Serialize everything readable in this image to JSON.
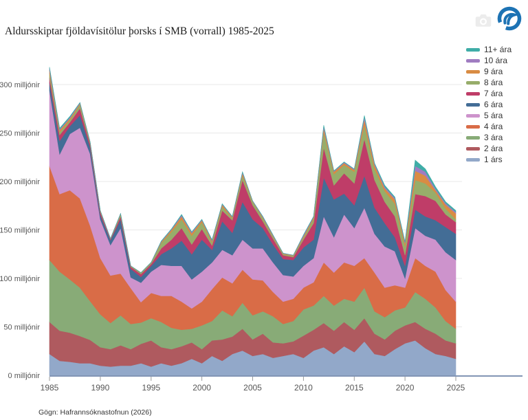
{
  "header": {
    "title_ref": "see chart_data.title"
  },
  "icons": {
    "toolbar_icon": "camera-icon",
    "brand_icon": "hafro-wave-logo"
  },
  "branding": {
    "logo_color": "#1d73b4"
  },
  "source": {
    "text": "Gögn: Hafrannsóknastofnun (2026)"
  },
  "chart_data": {
    "type": "area",
    "stacked": true,
    "title": "Aldursskiptar fjöldavísitölur þorsks í SMB (vorrall) 1985-2025",
    "xlabel": "",
    "ylabel": "",
    "y_tick_suffix": " milljónir",
    "y_ticks": [
      0,
      50,
      100,
      150,
      200,
      250,
      300
    ],
    "ylim": [
      0,
      320
    ],
    "x_tick_years": [
      1985,
      1990,
      1995,
      2000,
      2005,
      2010,
      2015,
      2020,
      2025
    ],
    "grid": true,
    "legend_position": "top-right",
    "style": {
      "grid_color": "#e8e8e8",
      "axis_line_color": "#8295b5",
      "tick_color": "#999999",
      "tick_label_color": "#555555"
    },
    "x": [
      1985,
      1986,
      1987,
      1988,
      1989,
      1990,
      1991,
      1992,
      1993,
      1994,
      1995,
      1996,
      1997,
      1998,
      1999,
      2000,
      2001,
      2002,
      2003,
      2004,
      2005,
      2006,
      2007,
      2008,
      2009,
      2010,
      2011,
      2012,
      2013,
      2014,
      2015,
      2016,
      2017,
      2018,
      2019,
      2020,
      2021,
      2022,
      2023,
      2024,
      2025
    ],
    "series": [
      {
        "name": "1 árs",
        "color": "#92a8c9",
        "values": [
          22,
          15,
          14,
          12.5,
          12.5,
          10,
          9,
          10,
          10,
          12.5,
          9,
          12.5,
          10,
          12.5,
          17,
          12.5,
          20,
          15,
          22,
          25.5,
          20,
          22,
          18,
          20,
          22,
          18,
          25.5,
          29,
          22,
          30,
          24,
          35,
          22,
          20,
          27,
          33,
          36,
          28,
          22,
          20,
          17
        ]
      },
      {
        "name": "2 ára",
        "color": "#af5a5f",
        "values": [
          33,
          31,
          30,
          28,
          24,
          19,
          18,
          21,
          17,
          20,
          27,
          16.5,
          17,
          17.5,
          17,
          14.5,
          16,
          22,
          18,
          22.5,
          17,
          21,
          16,
          13,
          13,
          23,
          21.5,
          25,
          24,
          25,
          23,
          24,
          21,
          17,
          19,
          18.5,
          19,
          20,
          21,
          16,
          16
        ]
      },
      {
        "name": "3 ára",
        "color": "#88ab77",
        "values": [
          64,
          61,
          55,
          50,
          40,
          34,
          27,
          31,
          26,
          22,
          23,
          26,
          22,
          17,
          14,
          24.5,
          20,
          30,
          21,
          27,
          25,
          23,
          27,
          20,
          21,
          27,
          25,
          28,
          26,
          24,
          29,
          31.5,
          23,
          23,
          21,
          18.5,
          31,
          31,
          27,
          20,
          15
        ]
      },
      {
        "name": "4 ára",
        "color": "#d96c47",
        "values": [
          97,
          80,
          92,
          92,
          78,
          58,
          49,
          43,
          37,
          21,
          26,
          27,
          33,
          29,
          21,
          24.5,
          33,
          34,
          34,
          34,
          37,
          32,
          25,
          23,
          23,
          22.5,
          24,
          34.5,
          34,
          37.5,
          37,
          30.5,
          40,
          30.5,
          26,
          20.5,
          35,
          34,
          37,
          32,
          28
        ]
      },
      {
        "name": "5 ára",
        "color": "#cd93cc",
        "values": [
          78,
          41,
          58,
          73,
          74,
          40,
          31.5,
          47,
          11,
          20,
          22,
          32,
          31,
          37,
          30,
          31,
          27.5,
          28.5,
          29,
          31,
          32,
          33,
          30.5,
          27.5,
          23,
          22.5,
          25,
          47.5,
          36.5,
          49.5,
          39,
          52,
          40,
          42.5,
          35,
          9.5,
          31,
          31,
          33,
          39,
          43
        ]
      },
      {
        "name": "6 ára",
        "color": "#436d96",
        "values": [
          8,
          14,
          8,
          13,
          7,
          4.5,
          5,
          9,
          9,
          6,
          6,
          11,
          18,
          26,
          26,
          33,
          13,
          29.5,
          23,
          39,
          30,
          21,
          18.5,
          16.5,
          17,
          19,
          19,
          40,
          39,
          21.5,
          23.5,
          33,
          27,
          24,
          14.5,
          13,
          19,
          20,
          20,
          26,
          27
        ]
      },
      {
        "name": "7 ára",
        "color": "#bf3d68",
        "values": [
          5,
          6,
          4,
          7,
          3,
          3,
          1,
          3,
          2,
          3,
          2,
          6,
          9,
          13,
          10,
          11,
          4.5,
          11,
          13,
          22.5,
          14.5,
          7,
          6,
          4,
          3,
          8,
          17,
          31,
          14.5,
          21,
          22.5,
          38,
          28.5,
          22,
          21.5,
          11,
          16,
          21,
          20,
          13,
          12
        ]
      },
      {
        "name": "8 ára",
        "color": "#97ad6a",
        "values": [
          5,
          3,
          2,
          4,
          1.5,
          1,
          0.3,
          2,
          0.5,
          1,
          1,
          5.5,
          8,
          9,
          9,
          7,
          3,
          4,
          2,
          4.5,
          3.5,
          3,
          2,
          1,
          1.2,
          2,
          4.5,
          16,
          11.5,
          8.5,
          12,
          14,
          11.5,
          11,
          13,
          9,
          14.5,
          13,
          8.5,
          6,
          3
        ]
      },
      {
        "name": "9 ára",
        "color": "#d98c43",
        "values": [
          3,
          2,
          2,
          1,
          0.6,
          0.3,
          0.2,
          0.5,
          0.3,
          0.3,
          0.3,
          1,
          2,
          3,
          2.5,
          2,
          1.5,
          2,
          1.2,
          2.5,
          0.6,
          1,
          1,
          0.6,
          0.5,
          1.5,
          1.5,
          4,
          2.5,
          2,
          2,
          6,
          4,
          3,
          4.5,
          3,
          9.5,
          8,
          2.5,
          4,
          6
        ]
      },
      {
        "name": "10 ára",
        "color": "#a07cc1",
        "values": [
          2,
          1,
          1,
          0.7,
          0.3,
          0.2,
          0.1,
          0.3,
          0.1,
          0.1,
          0.2,
          0.6,
          0.6,
          1.2,
          1,
          0.6,
          0.8,
          0.6,
          0.5,
          1,
          0.3,
          0.6,
          0.6,
          0.3,
          0.2,
          1,
          0.7,
          2,
          0.7,
          0.8,
          0.7,
          2.5,
          1.5,
          1.5,
          1.5,
          1,
          5,
          4,
          1.5,
          1.5,
          1.5
        ]
      },
      {
        "name": "11+ ára",
        "color": "#3fada7",
        "values": [
          1,
          1,
          1,
          0.3,
          0.1,
          0.1,
          0.1,
          0.2,
          0.1,
          0.1,
          0.1,
          0.4,
          0.4,
          0.8,
          0.5,
          0.4,
          0.7,
          0.4,
          0.3,
          0.5,
          0.1,
          0.4,
          0.4,
          0.1,
          0.1,
          0.5,
          0.3,
          1,
          0.3,
          0.4,
          0.3,
          1.5,
          0.5,
          1.5,
          1,
          1,
          6,
          3,
          2,
          1.5,
          1.5
        ]
      }
    ]
  }
}
